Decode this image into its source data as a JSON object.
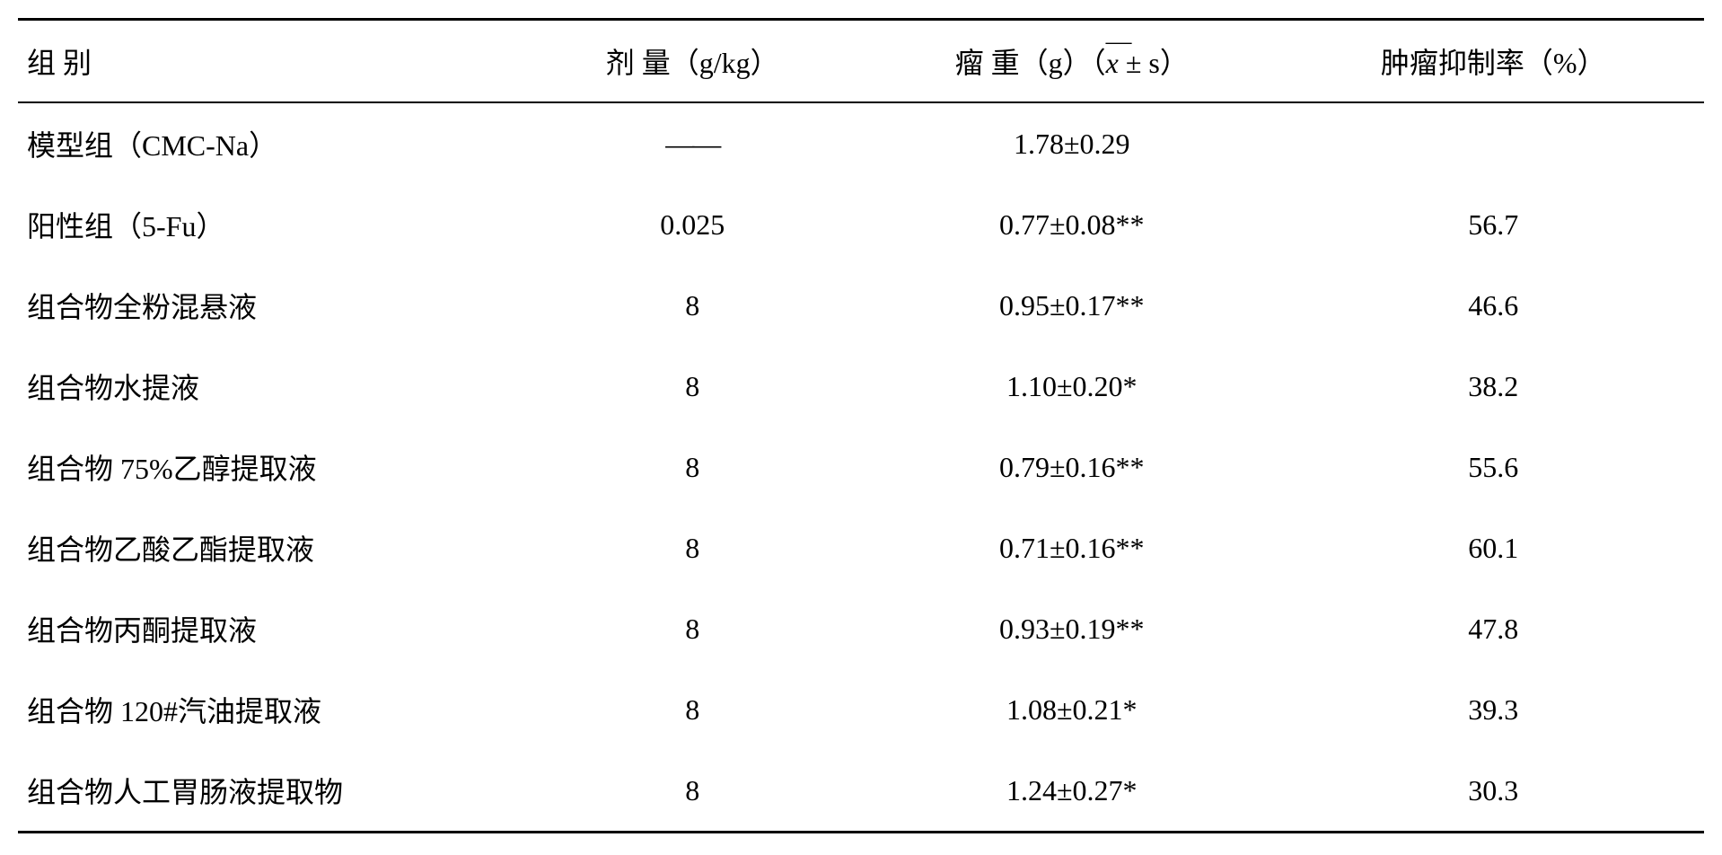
{
  "table": {
    "headers": {
      "group": "组 别",
      "dose": "剂 量（g/kg）",
      "tumor_weight_prefix": "瘤 重（g）（",
      "tumor_weight_xbar": "x",
      "tumor_weight_suffix": " ± s）",
      "inhibition_rate": "肿瘤抑制率（%）"
    },
    "rows": [
      {
        "group": "模型组（CMC-Na）",
        "dose": "——",
        "tumor_weight": "1.78±0.29",
        "inhibition_rate": ""
      },
      {
        "group": "阳性组（5-Fu）",
        "dose": "0.025",
        "tumor_weight": "0.77±0.08**",
        "inhibition_rate": "56.7"
      },
      {
        "group": "组合物全粉混悬液",
        "dose": "8",
        "tumor_weight": "0.95±0.17**",
        "inhibition_rate": "46.6"
      },
      {
        "group": "组合物水提液",
        "dose": "8",
        "tumor_weight": "1.10±0.20*",
        "inhibition_rate": "38.2"
      },
      {
        "group": "组合物 75%乙醇提取液",
        "dose": "8",
        "tumor_weight": "0.79±0.16**",
        "inhibition_rate": "55.6"
      },
      {
        "group": "组合物乙酸乙酯提取液",
        "dose": "8",
        "tumor_weight": "0.71±0.16**",
        "inhibition_rate": "60.1"
      },
      {
        "group": "组合物丙酮提取液",
        "dose": "8",
        "tumor_weight": "0.93±0.19**",
        "inhibition_rate": "47.8"
      },
      {
        "group": "组合物 120#汽油提取液",
        "dose": "8",
        "tumor_weight": "1.08±0.21*",
        "inhibition_rate": "39.3"
      },
      {
        "group": "组合物人工胃肠液提取物",
        "dose": "8",
        "tumor_weight": "1.24±0.27*",
        "inhibition_rate": "30.3"
      }
    ]
  }
}
